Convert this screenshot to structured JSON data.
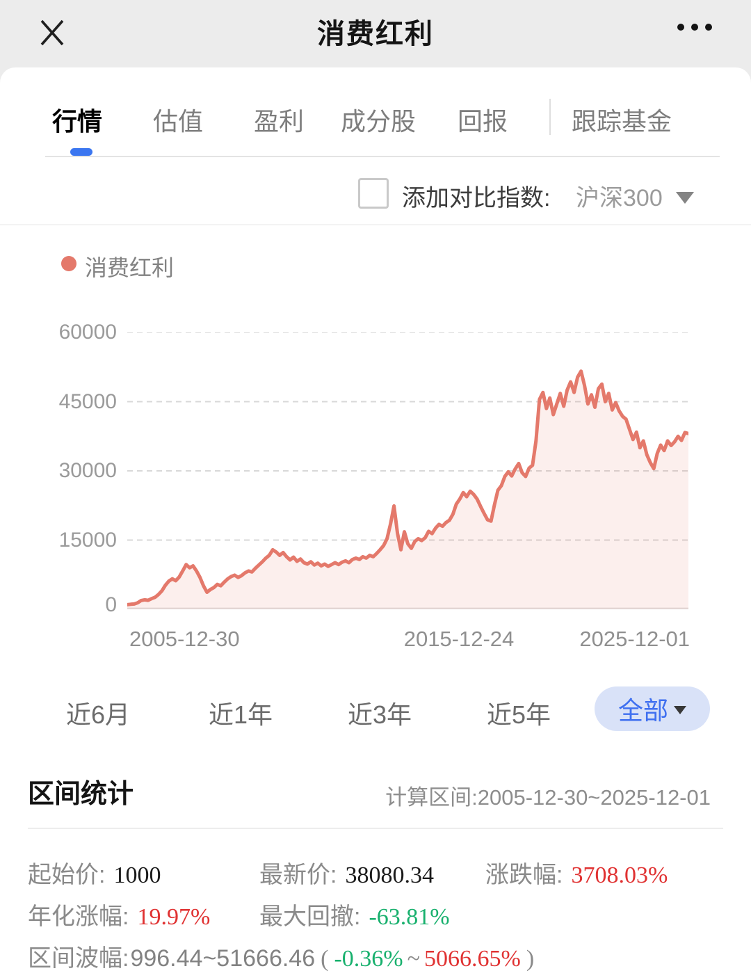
{
  "header": {
    "title": "消费红利"
  },
  "tabs": {
    "items": [
      "行情",
      "估值",
      "盈利",
      "成分股",
      "回报"
    ],
    "active": "行情",
    "extra": "跟踪基金"
  },
  "compare": {
    "checkbox_checked": false,
    "label": "添加对比指数:",
    "index_name": "沪深300"
  },
  "legend": {
    "name": "消费红利"
  },
  "chart_data": {
    "type": "area",
    "title": "消费红利",
    "ylim": [
      0,
      60000
    ],
    "yticks": [
      0,
      15000,
      30000,
      45000,
      60000
    ],
    "ytick_labels": [
      "0",
      "15000",
      "30000",
      "45000",
      "60000"
    ],
    "xtick_labels": [
      "2005-12-30",
      "2015-12-24",
      "2025-12-01"
    ],
    "x_range": [
      "2005-12-30",
      "2025-12-01"
    ],
    "grid": "dashed-horizontal",
    "legend_position": "top-left",
    "line_color": "#e4796b",
    "fill_color": "rgba(228,121,107,0.12)",
    "series": [
      {
        "name": "消费红利",
        "values": [
          1000,
          1080,
          1150,
          1400,
          1900,
          2050,
          1950,
          2300,
          2600,
          3200,
          4000,
          5200,
          6100,
          6600,
          6200,
          7000,
          8300,
          9700,
          9000,
          9400,
          8300,
          6900,
          5100,
          3700,
          4300,
          4700,
          5400,
          5100,
          5900,
          6600,
          7100,
          7400,
          6900,
          7300,
          7900,
          8300,
          8100,
          8900,
          9600,
          10300,
          11100,
          11700,
          12900,
          12400,
          11700,
          12300,
          11400,
          10700,
          11300,
          10400,
          10900,
          10100,
          9800,
          10300,
          9600,
          10000,
          9400,
          9800,
          9300,
          9700,
          10100,
          9700,
          10200,
          10500,
          10100,
          10800,
          11100,
          10800,
          11400,
          11100,
          11700,
          11400,
          12100,
          12900,
          13800,
          15300,
          18500,
          22400,
          16500,
          12900,
          16800,
          14200,
          13200,
          14700,
          15300,
          14900,
          15500,
          16900,
          16400,
          17600,
          18400,
          18000,
          18800,
          19300,
          20600,
          22800,
          23900,
          25300,
          24400,
          25600,
          24900,
          23900,
          22300,
          20800,
          19400,
          19100,
          22600,
          25800,
          26800,
          28800,
          29800,
          28900,
          30400,
          31600,
          29600,
          28800,
          30600,
          31200,
          36500,
          45500,
          47000,
          43500,
          45800,
          42200,
          44500,
          46800,
          44000,
          47500,
          49300,
          47000,
          50300,
          51600,
          48500,
          44500,
          46500,
          43800,
          47800,
          48800,
          45000,
          46800,
          43200,
          44800,
          43000,
          41800,
          41200,
          39000,
          36800,
          38400,
          35000,
          36500,
          33500,
          31800,
          30500,
          33800,
          35600,
          34400,
          36500,
          35500,
          36300,
          37500,
          36600,
          38300,
          38080
        ]
      }
    ]
  },
  "ranges": {
    "items": [
      "近6月",
      "近1年",
      "近3年",
      "近5年"
    ],
    "selected": "全部"
  },
  "stats": {
    "section_title": "区间统计",
    "calc_range": "计算区间:2005-12-30~2025-12-01",
    "start_price": {
      "label": "起始价:",
      "value": "1000"
    },
    "latest_price": {
      "label": "最新价:",
      "value": "38080.34"
    },
    "change_pct": {
      "label": "涨跌幅:",
      "value": "3708.03%"
    },
    "annualized": {
      "label": "年化涨幅:",
      "value": "19.97%"
    },
    "max_drawdown": {
      "label": "最大回撤:",
      "value": "-63.81%"
    },
    "range_band": {
      "label": "区间波幅:",
      "value": "996.44~51666.46",
      "paren_open": "(",
      "low_pct": "-0.36%",
      "tilde": "~",
      "high_pct": "5066.65%",
      "paren_close": ")"
    }
  },
  "colors": {
    "accent_blue": "#3b76f0",
    "line": "#e4796b",
    "negative_red": "#e03232",
    "positive_green": "#17b06d",
    "pill_bg": "#d9e2f8"
  }
}
